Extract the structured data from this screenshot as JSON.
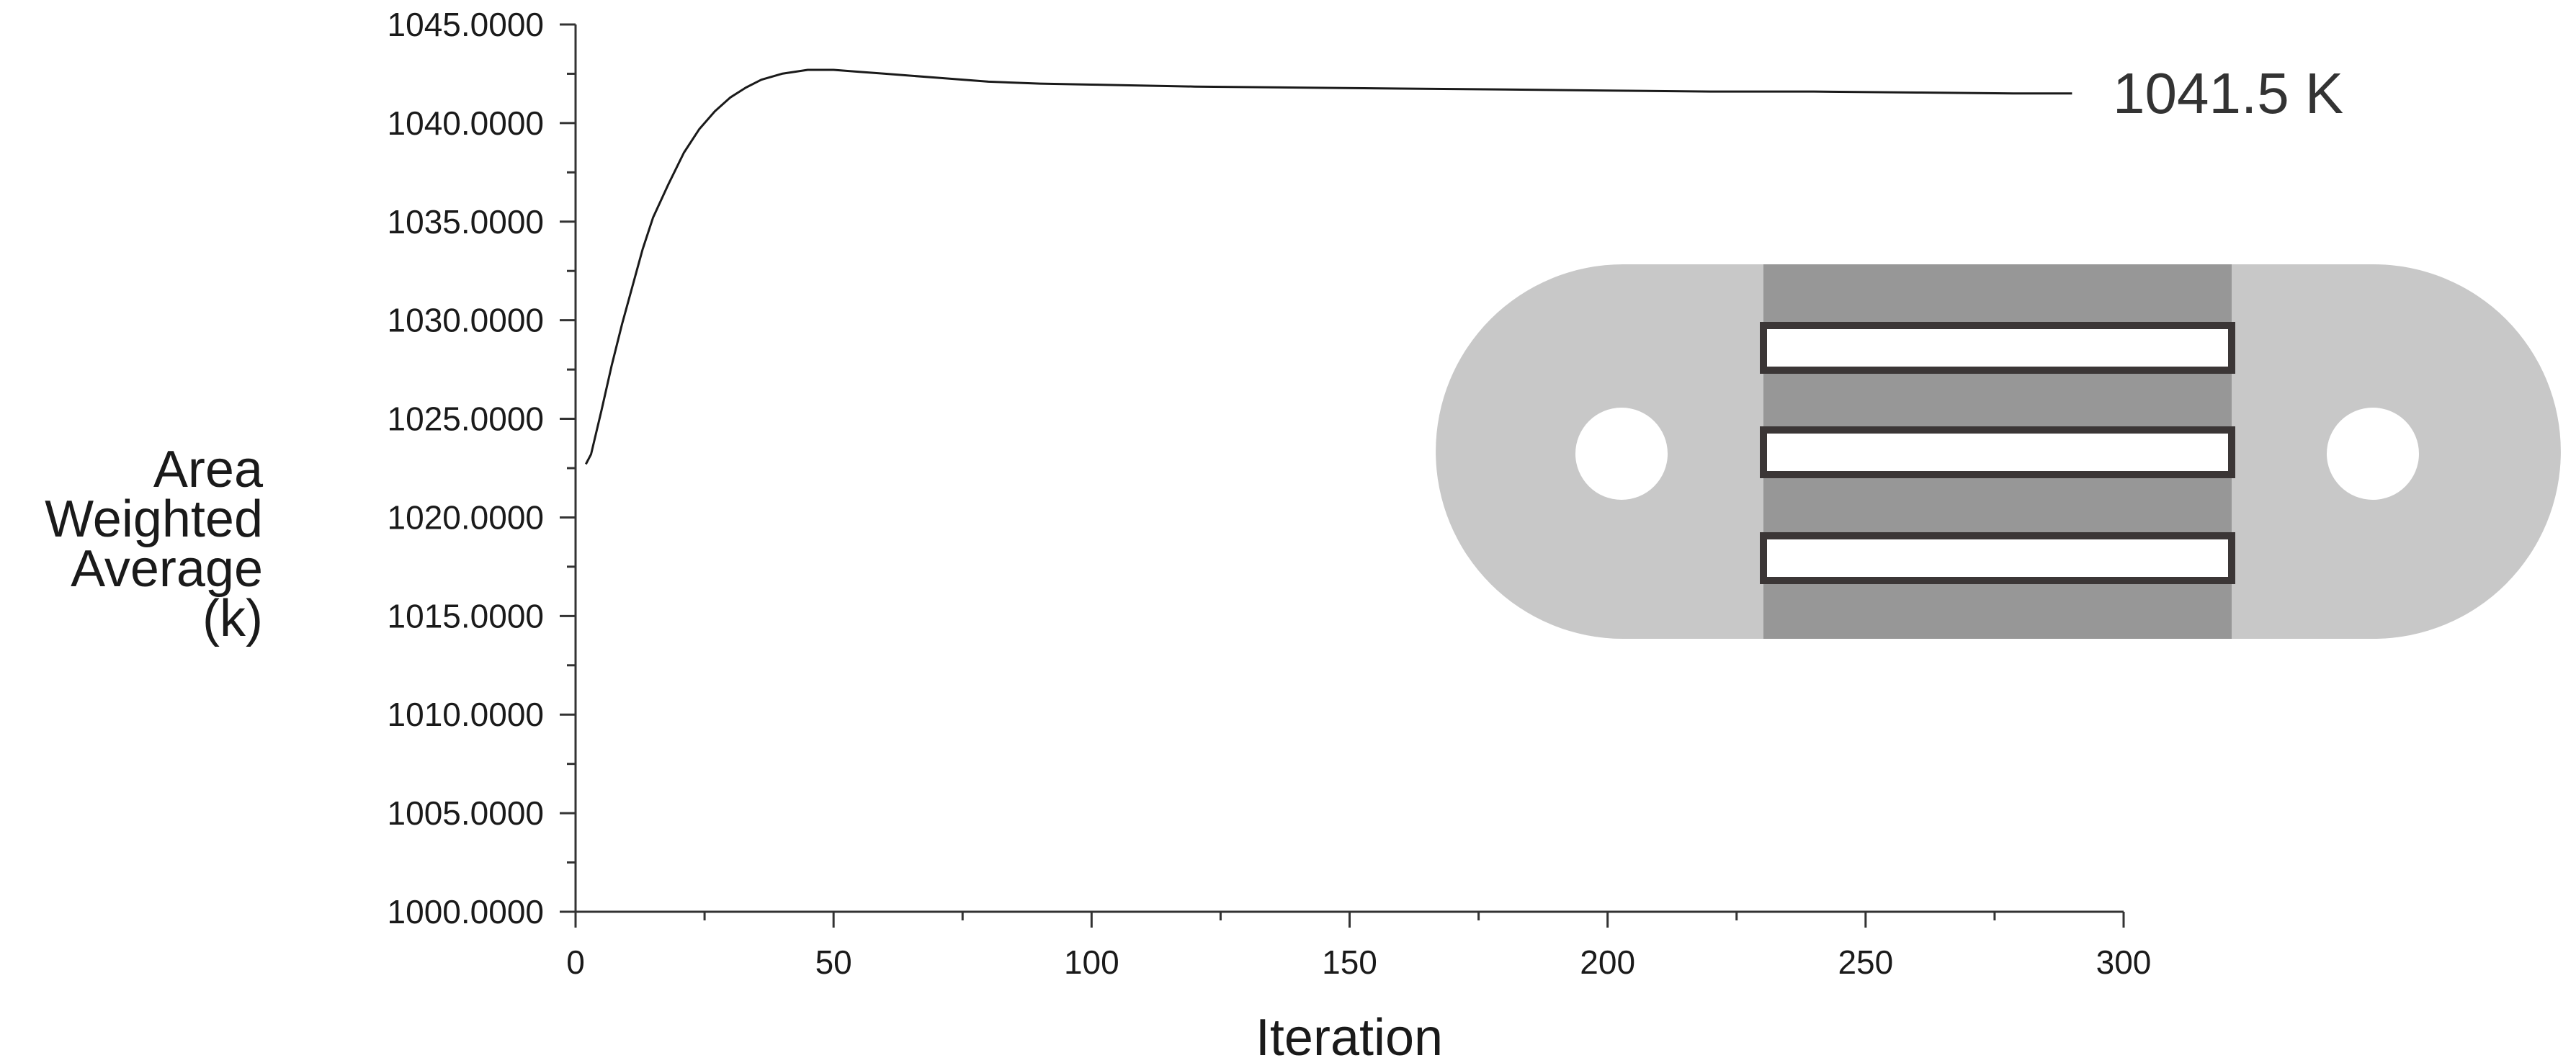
{
  "chart_data": {
    "type": "line",
    "title": "",
    "xlabel": "Iteration",
    "ylabel_lines": [
      "Area",
      "Weighted",
      "Average",
      "(k)"
    ],
    "xlim": [
      0,
      300
    ],
    "ylim": [
      1000,
      1045
    ],
    "x_ticks": [
      0,
      50,
      100,
      150,
      200,
      250,
      300
    ],
    "x_tick_labels": [
      "0",
      "50",
      "100",
      "150",
      "200",
      "250",
      "300"
    ],
    "y_ticks": [
      1000,
      1005,
      1010,
      1015,
      1020,
      1025,
      1030,
      1035,
      1040,
      1045
    ],
    "y_tick_labels": [
      "1000.0000",
      "1005.0000",
      "1010.0000",
      "1015.0000",
      "1020.0000",
      "1025.0000",
      "1030.0000",
      "1035.0000",
      "1040.0000",
      "1045.0000"
    ],
    "grid": false,
    "series": [
      {
        "x": [
          2,
          3,
          5,
          7,
          9,
          11,
          13,
          15,
          18,
          21,
          24,
          27,
          30,
          33,
          36,
          40,
          45,
          50,
          55,
          60,
          70,
          80,
          90,
          100,
          120,
          140,
          160,
          180,
          200,
          220,
          240,
          260,
          280,
          290
        ],
        "y": [
          1022.7,
          1023.2,
          1025.4,
          1027.7,
          1029.8,
          1031.7,
          1033.6,
          1035.2,
          1036.9,
          1038.5,
          1039.7,
          1040.6,
          1041.3,
          1041.8,
          1042.2,
          1042.5,
          1042.7,
          1042.7,
          1042.6,
          1042.5,
          1042.3,
          1042.1,
          1042.0,
          1041.95,
          1041.85,
          1041.8,
          1041.75,
          1041.7,
          1041.65,
          1041.6,
          1041.6,
          1041.55,
          1041.5,
          1041.5
        ],
        "color": "#1a1a1a"
      }
    ],
    "annotation": "1041.5 K"
  },
  "inset": {
    "colors": {
      "outer_body": "#c8c8c8",
      "center_band": "#979797",
      "slot_fill": "#ffffff",
      "slot_outline": "#3b3636",
      "holes": "#ffffff"
    }
  }
}
